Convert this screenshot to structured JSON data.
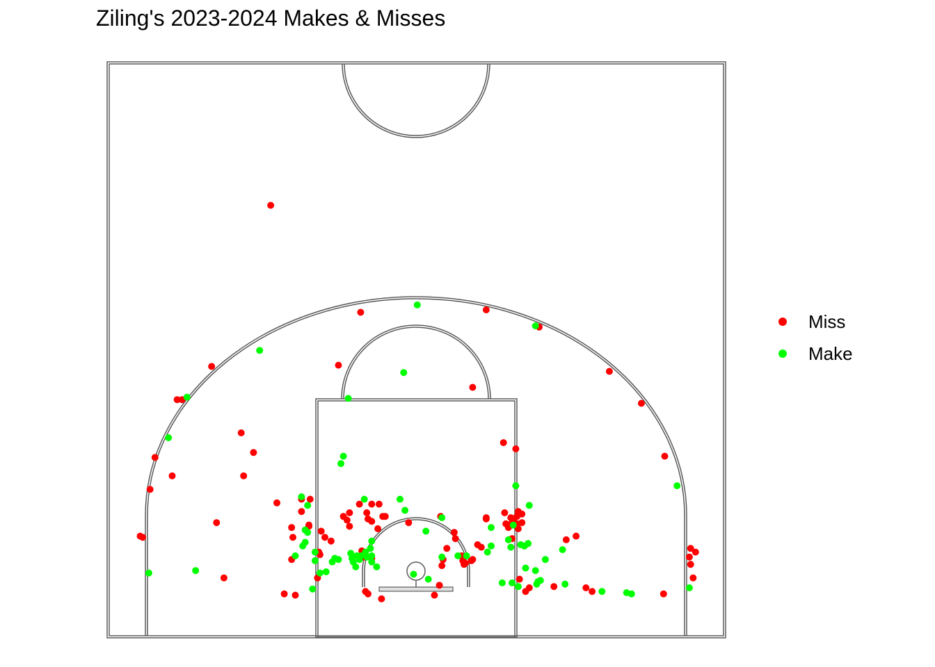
{
  "chart_data": {
    "type": "scatter",
    "title": "Ziling's 2023-2024 Makes & Misses",
    "xlabel": "",
    "ylabel": "",
    "background": "half-court diagram",
    "x_units": "feet from basket center (left negative)",
    "y_units": "feet from baseline",
    "xlim": [
      -25,
      25
    ],
    "ylim": [
      0,
      47
    ],
    "legend": {
      "position": "right",
      "entries": [
        {
          "label": "Miss",
          "color": "#ff0000"
        },
        {
          "label": "Make",
          "color": "#00ff00"
        }
      ]
    },
    "series": [
      {
        "name": "Miss",
        "color": "#ff0000",
        "points": [
          [
            -11.8,
            35.0
          ],
          [
            -4.5,
            26.3
          ],
          [
            5.7,
            26.5
          ],
          [
            10.0,
            25.1
          ],
          [
            -16.6,
            21.9
          ],
          [
            -19.4,
            19.2
          ],
          [
            -19.0,
            19.2
          ],
          [
            -6.3,
            22.0
          ],
          [
            15.7,
            21.5
          ],
          [
            18.3,
            18.9
          ],
          [
            4.6,
            20.2
          ],
          [
            7.1,
            15.7
          ],
          [
            8.1,
            15.2
          ],
          [
            -14.2,
            16.5
          ],
          [
            -13.2,
            14.9
          ],
          [
            20.2,
            14.6
          ],
          [
            -21.2,
            14.5
          ],
          [
            -19.8,
            13.0
          ],
          [
            -21.6,
            11.9
          ],
          [
            -22.4,
            8.1
          ],
          [
            -22.2,
            8.0
          ],
          [
            -14.0,
            13.0
          ],
          [
            -11.3,
            10.8
          ],
          [
            -16.2,
            9.2
          ],
          [
            -15.6,
            4.7
          ],
          [
            -10.1,
            8.8
          ],
          [
            -8.7,
            8.9
          ],
          [
            -9.3,
            11.1
          ],
          [
            -8.6,
            11.1
          ],
          [
            -9.3,
            10.1
          ],
          [
            -8.7,
            9.0
          ],
          [
            -10.0,
            8.0
          ],
          [
            -7.7,
            8.5
          ],
          [
            -7.4,
            8.0
          ],
          [
            -7.9,
            6.8
          ],
          [
            -7.8,
            6.6
          ],
          [
            -8.0,
            4.7
          ],
          [
            -10.1,
            6.2
          ],
          [
            -10.7,
            3.4
          ],
          [
            -9.8,
            3.3
          ],
          [
            -6.9,
            7.7
          ],
          [
            -5.9,
            9.7
          ],
          [
            -5.4,
            10.0
          ],
          [
            -4.6,
            10.7
          ],
          [
            -4.0,
            10.0
          ],
          [
            -3.6,
            10.7
          ],
          [
            -3.0,
            10.7
          ],
          [
            -2.7,
            9.7
          ],
          [
            -3.6,
            9.3
          ],
          [
            -3.9,
            9.5
          ],
          [
            -5.6,
            9.4
          ],
          [
            -5.4,
            8.9
          ],
          [
            -3.1,
            8.7
          ],
          [
            -2.5,
            9.7
          ],
          [
            -4.4,
            6.9
          ],
          [
            -4.2,
            6.4
          ],
          [
            -3.6,
            6.3
          ],
          [
            -4.1,
            3.6
          ],
          [
            -3.9,
            3.4
          ],
          [
            -2.8,
            3.0
          ],
          [
            -0.6,
            9.2
          ],
          [
            2.0,
            9.7
          ],
          [
            3.1,
            8.4
          ],
          [
            3.2,
            7.9
          ],
          [
            2.5,
            7.1
          ],
          [
            2.2,
            6.2
          ],
          [
            3.7,
            6.5
          ],
          [
            3.8,
            6.1
          ],
          [
            3.9,
            5.8
          ],
          [
            4.0,
            5.9
          ],
          [
            4.5,
            6.1
          ],
          [
            4.6,
            6.2
          ],
          [
            2.1,
            5.7
          ],
          [
            1.9,
            4.1
          ],
          [
            1.5,
            3.3
          ],
          [
            5.0,
            7.4
          ],
          [
            5.3,
            7.2
          ],
          [
            5.7,
            9.6
          ],
          [
            5.7,
            9.5
          ],
          [
            7.3,
            9.1
          ],
          [
            7.8,
            9.2
          ],
          [
            7.9,
            9.3
          ],
          [
            8.2,
            9.1
          ],
          [
            8.6,
            9.2
          ],
          [
            8.6,
            9.9
          ],
          [
            8.3,
            10.1
          ],
          [
            7.7,
            9.6
          ],
          [
            7.5,
            8.8
          ],
          [
            7.8,
            7.9
          ],
          [
            8.3,
            8.7
          ],
          [
            7.2,
            10.0
          ],
          [
            8.2,
            9.7
          ],
          [
            9.2,
            3.9
          ],
          [
            11.2,
            4.0
          ],
          [
            12.2,
            7.8
          ],
          [
            13.0,
            8.1
          ],
          [
            13.8,
            3.9
          ],
          [
            14.3,
            3.6
          ],
          [
            20.1,
            3.4
          ],
          [
            22.2,
            6.4
          ],
          [
            22.3,
            7.1
          ],
          [
            22.7,
            6.8
          ],
          [
            22.3,
            5.8
          ],
          [
            22.5,
            4.7
          ],
          [
            8.4,
            4.6
          ],
          [
            8.9,
            3.6
          ]
        ]
      },
      {
        "name": "Make",
        "color": "#00ff00",
        "points": [
          [
            0.1,
            26.9
          ],
          [
            9.7,
            25.2
          ],
          [
            -12.7,
            23.2
          ],
          [
            -1.0,
            21.4
          ],
          [
            -18.6,
            19.4
          ],
          [
            -5.5,
            19.3
          ],
          [
            -5.9,
            14.6
          ],
          [
            -6.1,
            14.0
          ],
          [
            -20.1,
            16.1
          ],
          [
            21.2,
            12.2
          ],
          [
            8.1,
            12.2
          ],
          [
            9.2,
            10.6
          ],
          [
            -9.3,
            11.3
          ],
          [
            -8.8,
            10.6
          ],
          [
            -1.3,
            11.1
          ],
          [
            -4.2,
            11.1
          ],
          [
            -0.9,
            10.2
          ],
          [
            2.1,
            9.6
          ],
          [
            0.8,
            8.5
          ],
          [
            -9.0,
            8.6
          ],
          [
            -8.8,
            8.4
          ],
          [
            -9.0,
            7.6
          ],
          [
            -9.2,
            7.3
          ],
          [
            -9.8,
            6.5
          ],
          [
            -8.2,
            6.8
          ],
          [
            -6.6,
            6.3
          ],
          [
            -6.3,
            6.2
          ],
          [
            -5.3,
            6.7
          ],
          [
            -5.2,
            6.3
          ],
          [
            -5.1,
            6.0
          ],
          [
            -4.8,
            6.5
          ],
          [
            -4.5,
            6.5
          ],
          [
            -4.1,
            6.8
          ],
          [
            -3.6,
            6.5
          ],
          [
            -4.9,
            5.6
          ],
          [
            -4.6,
            6.2
          ],
          [
            -3.6,
            7.7
          ],
          [
            -3.7,
            7.1
          ],
          [
            -4.0,
            6.4
          ],
          [
            -3.6,
            6.0
          ],
          [
            -7.8,
            5.1
          ],
          [
            -3.2,
            5.6
          ],
          [
            -0.2,
            5.0
          ],
          [
            1.0,
            4.6
          ],
          [
            2.1,
            6.4
          ],
          [
            3.4,
            6.5
          ],
          [
            4.1,
            6.5
          ],
          [
            5.8,
            6.8
          ],
          [
            6.1,
            8.8
          ],
          [
            6.1,
            7.3
          ],
          [
            7.5,
            7.8
          ],
          [
            7.9,
            9.0
          ],
          [
            7.7,
            7.2
          ],
          [
            8.5,
            7.4
          ],
          [
            8.8,
            7.3
          ],
          [
            9.1,
            7.5
          ],
          [
            7.0,
            4.3
          ],
          [
            7.8,
            4.3
          ],
          [
            8.3,
            4.0
          ],
          [
            9.8,
            4.2
          ],
          [
            9.9,
            4.4
          ],
          [
            10.1,
            4.5
          ],
          [
            8.9,
            5.5
          ],
          [
            9.7,
            5.3
          ],
          [
            10.5,
            6.2
          ],
          [
            11.9,
            7.0
          ],
          [
            12.1,
            4.2
          ],
          [
            15.1,
            3.6
          ],
          [
            17.1,
            3.5
          ],
          [
            17.5,
            3.4
          ],
          [
            22.2,
            3.9
          ],
          [
            -17.9,
            5.3
          ],
          [
            -21.7,
            5.1
          ],
          [
            -8.4,
            3.8
          ],
          [
            -7.3,
            5.2
          ],
          [
            -6.8,
            6.0
          ],
          [
            -8.2,
            6.1
          ]
        ]
      }
    ]
  }
}
